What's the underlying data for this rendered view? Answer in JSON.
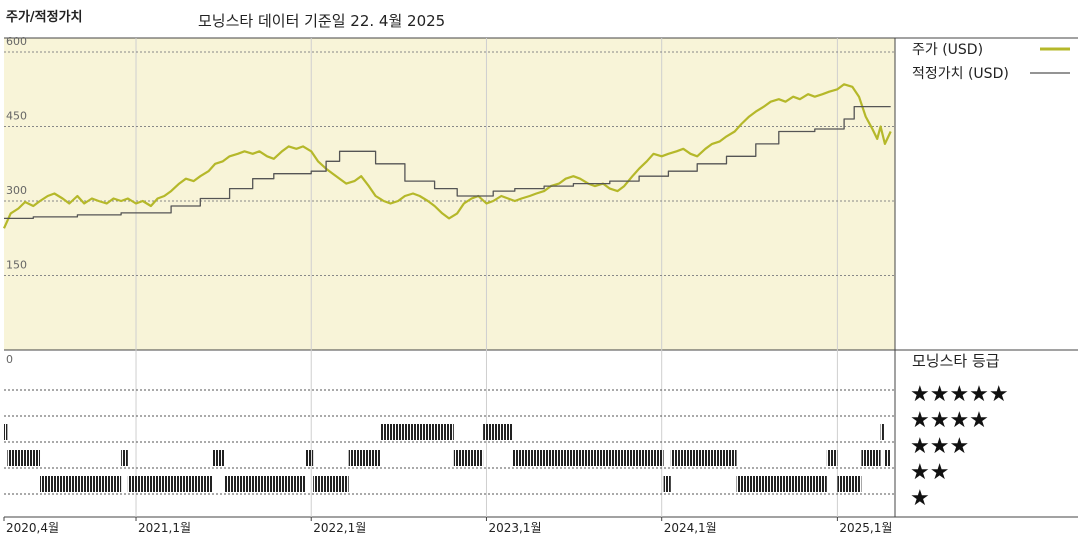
{
  "header": {
    "title": "주가/적정가치",
    "subtitle": "모닝스타 데이터 기준일 22. 4월 2025"
  },
  "chart_data": {
    "type": "line",
    "x_range": [
      "2020-04-01",
      "2025-05-01"
    ],
    "y_ticks": [
      "600",
      "450",
      "300",
      "150"
    ],
    "ylim": [
      0,
      600
    ],
    "colors": {
      "price": "#b5b82a",
      "fair_value": "#555555",
      "price_panel_bg": "#f8f4d8"
    },
    "series": [
      {
        "name": "주가 (USD)",
        "key": "price",
        "points": [
          [
            "2020-04-01",
            245
          ],
          [
            "2020-04-15",
            275
          ],
          [
            "2020-05-01",
            285
          ],
          [
            "2020-05-15",
            298
          ],
          [
            "2020-06-01",
            290
          ],
          [
            "2020-06-15",
            300
          ],
          [
            "2020-07-01",
            310
          ],
          [
            "2020-07-15",
            315
          ],
          [
            "2020-08-01",
            305
          ],
          [
            "2020-08-15",
            295
          ],
          [
            "2020-09-01",
            310
          ],
          [
            "2020-09-15",
            295
          ],
          [
            "2020-10-01",
            305
          ],
          [
            "2020-10-15",
            300
          ],
          [
            "2020-11-01",
            295
          ],
          [
            "2020-11-15",
            305
          ],
          [
            "2020-12-01",
            300
          ],
          [
            "2020-12-15",
            305
          ],
          [
            "2021-01-01",
            295
          ],
          [
            "2021-01-15",
            300
          ],
          [
            "2021-02-01",
            290
          ],
          [
            "2021-02-15",
            305
          ],
          [
            "2021-03-01",
            310
          ],
          [
            "2021-03-15",
            320
          ],
          [
            "2021-04-01",
            335
          ],
          [
            "2021-04-15",
            345
          ],
          [
            "2021-05-01",
            340
          ],
          [
            "2021-05-15",
            350
          ],
          [
            "2021-06-01",
            360
          ],
          [
            "2021-06-15",
            375
          ],
          [
            "2021-07-01",
            380
          ],
          [
            "2021-07-15",
            390
          ],
          [
            "2021-08-01",
            395
          ],
          [
            "2021-08-15",
            400
          ],
          [
            "2021-09-01",
            395
          ],
          [
            "2021-09-15",
            400
          ],
          [
            "2021-10-01",
            390
          ],
          [
            "2021-10-15",
            385
          ],
          [
            "2021-11-01",
            400
          ],
          [
            "2021-11-15",
            410
          ],
          [
            "2021-12-01",
            405
          ],
          [
            "2021-12-15",
            410
          ],
          [
            "2022-01-01",
            400
          ],
          [
            "2022-01-15",
            380
          ],
          [
            "2022-02-01",
            365
          ],
          [
            "2022-02-15",
            355
          ],
          [
            "2022-03-01",
            345
          ],
          [
            "2022-03-15",
            335
          ],
          [
            "2022-04-01",
            340
          ],
          [
            "2022-04-15",
            350
          ],
          [
            "2022-05-01",
            330
          ],
          [
            "2022-05-15",
            310
          ],
          [
            "2022-06-01",
            300
          ],
          [
            "2022-06-15",
            295
          ],
          [
            "2022-07-01",
            300
          ],
          [
            "2022-07-15",
            310
          ],
          [
            "2022-08-01",
            315
          ],
          [
            "2022-08-15",
            310
          ],
          [
            "2022-09-01",
            300
          ],
          [
            "2022-09-15",
            290
          ],
          [
            "2022-10-01",
            275
          ],
          [
            "2022-10-15",
            265
          ],
          [
            "2022-11-01",
            275
          ],
          [
            "2022-11-15",
            295
          ],
          [
            "2022-12-01",
            305
          ],
          [
            "2022-12-15",
            310
          ],
          [
            "2023-01-01",
            295
          ],
          [
            "2023-01-15",
            300
          ],
          [
            "2023-02-01",
            310
          ],
          [
            "2023-02-15",
            305
          ],
          [
            "2023-03-01",
            300
          ],
          [
            "2023-03-15",
            305
          ],
          [
            "2023-04-01",
            310
          ],
          [
            "2023-04-15",
            315
          ],
          [
            "2023-05-01",
            320
          ],
          [
            "2023-05-15",
            330
          ],
          [
            "2023-06-01",
            335
          ],
          [
            "2023-06-15",
            345
          ],
          [
            "2023-07-01",
            350
          ],
          [
            "2023-07-15",
            345
          ],
          [
            "2023-08-01",
            335
          ],
          [
            "2023-08-15",
            330
          ],
          [
            "2023-09-01",
            335
          ],
          [
            "2023-09-15",
            325
          ],
          [
            "2023-10-01",
            320
          ],
          [
            "2023-10-15",
            330
          ],
          [
            "2023-11-01",
            350
          ],
          [
            "2023-11-15",
            365
          ],
          [
            "2023-12-01",
            380
          ],
          [
            "2023-12-15",
            395
          ],
          [
            "2024-01-01",
            390
          ],
          [
            "2024-01-15",
            395
          ],
          [
            "2024-02-01",
            400
          ],
          [
            "2024-02-15",
            405
          ],
          [
            "2024-03-01",
            395
          ],
          [
            "2024-03-15",
            390
          ],
          [
            "2024-04-01",
            405
          ],
          [
            "2024-04-15",
            415
          ],
          [
            "2024-05-01",
            420
          ],
          [
            "2024-05-15",
            430
          ],
          [
            "2024-06-01",
            440
          ],
          [
            "2024-06-15",
            455
          ],
          [
            "2024-07-01",
            470
          ],
          [
            "2024-07-15",
            480
          ],
          [
            "2024-08-01",
            490
          ],
          [
            "2024-08-15",
            500
          ],
          [
            "2024-09-01",
            505
          ],
          [
            "2024-09-15",
            500
          ],
          [
            "2024-10-01",
            510
          ],
          [
            "2024-10-15",
            505
          ],
          [
            "2024-11-01",
            515
          ],
          [
            "2024-11-15",
            510
          ],
          [
            "2024-12-01",
            515
          ],
          [
            "2024-12-15",
            520
          ],
          [
            "2025-01-01",
            525
          ],
          [
            "2025-01-15",
            535
          ],
          [
            "2025-02-01",
            530
          ],
          [
            "2025-02-15",
            510
          ],
          [
            "2025-03-01",
            470
          ],
          [
            "2025-03-15",
            445
          ],
          [
            "2025-03-25",
            425
          ],
          [
            "2025-04-01",
            450
          ],
          [
            "2025-04-10",
            415
          ],
          [
            "2025-04-22",
            440
          ]
        ]
      },
      {
        "name": "적정가치 (USD)",
        "key": "fair_value",
        "points": [
          [
            "2020-04-01",
            265
          ],
          [
            "2020-06-01",
            265
          ],
          [
            "2020-06-01",
            268
          ],
          [
            "2020-09-01",
            268
          ],
          [
            "2020-09-01",
            272
          ],
          [
            "2020-12-01",
            272
          ],
          [
            "2020-12-01",
            276
          ],
          [
            "2021-03-15",
            276
          ],
          [
            "2021-03-15",
            290
          ],
          [
            "2021-05-15",
            290
          ],
          [
            "2021-05-15",
            305
          ],
          [
            "2021-07-15",
            305
          ],
          [
            "2021-07-15",
            325
          ],
          [
            "2021-09-01",
            325
          ],
          [
            "2021-09-01",
            345
          ],
          [
            "2021-10-15",
            345
          ],
          [
            "2021-10-15",
            355
          ],
          [
            "2022-01-01",
            355
          ],
          [
            "2022-01-01",
            360
          ],
          [
            "2022-02-01",
            360
          ],
          [
            "2022-02-01",
            380
          ],
          [
            "2022-03-01",
            380
          ],
          [
            "2022-03-01",
            400
          ],
          [
            "2022-05-15",
            400
          ],
          [
            "2022-05-15",
            375
          ],
          [
            "2022-07-15",
            375
          ],
          [
            "2022-07-15",
            340
          ],
          [
            "2022-09-15",
            340
          ],
          [
            "2022-09-15",
            325
          ],
          [
            "2022-11-01",
            325
          ],
          [
            "2022-11-01",
            310
          ],
          [
            "2023-01-15",
            310
          ],
          [
            "2023-01-15",
            320
          ],
          [
            "2023-03-01",
            320
          ],
          [
            "2023-03-01",
            325
          ],
          [
            "2023-05-01",
            325
          ],
          [
            "2023-05-01",
            330
          ],
          [
            "2023-07-01",
            330
          ],
          [
            "2023-07-01",
            335
          ],
          [
            "2023-09-15",
            335
          ],
          [
            "2023-09-15",
            340
          ],
          [
            "2023-11-15",
            340
          ],
          [
            "2023-11-15",
            350
          ],
          [
            "2024-01-15",
            350
          ],
          [
            "2024-01-15",
            360
          ],
          [
            "2024-03-15",
            360
          ],
          [
            "2024-03-15",
            375
          ],
          [
            "2024-05-15",
            375
          ],
          [
            "2024-05-15",
            390
          ],
          [
            "2024-07-15",
            390
          ],
          [
            "2024-07-15",
            415
          ],
          [
            "2024-09-01",
            415
          ],
          [
            "2024-09-01",
            440
          ],
          [
            "2024-11-15",
            440
          ],
          [
            "2024-11-15",
            445
          ],
          [
            "2025-01-15",
            445
          ],
          [
            "2025-01-15",
            465
          ],
          [
            "2025-02-05",
            465
          ],
          [
            "2025-02-05",
            490
          ],
          [
            "2025-04-22",
            490
          ]
        ]
      }
    ],
    "x_ticks": [
      {
        "label": "2020,4월",
        "date": "2020-04-01"
      },
      {
        "label": "2021,1월",
        "date": "2021-01-01"
      },
      {
        "label": "2022,1월",
        "date": "2022-01-01"
      },
      {
        "label": "2023,1월",
        "date": "2023-01-01"
      },
      {
        "label": "2024,1월",
        "date": "2024-01-01"
      },
      {
        "label": "2025,1월",
        "date": "2025-01-01"
      }
    ],
    "grid": true,
    "legend_position": "top-right",
    "rating_panel": {
      "title": "모닝스타 등급",
      "zero_label": "0",
      "levels": [
        {
          "stars": 5,
          "text": "★★★★★"
        },
        {
          "stars": 4,
          "text": "★★★★"
        },
        {
          "stars": 3,
          "text": "★★★"
        },
        {
          "stars": 2,
          "text": "★★"
        },
        {
          "stars": 1,
          "text": "★"
        }
      ],
      "periods": [
        {
          "rating": 4,
          "start": "2020-04-01",
          "end": "2020-04-08"
        },
        {
          "rating": 3,
          "start": "2020-04-08",
          "end": "2020-06-15"
        },
        {
          "rating": 2,
          "start": "2020-06-15",
          "end": "2020-12-01"
        },
        {
          "rating": 3,
          "start": "2020-12-01",
          "end": "2020-12-15"
        },
        {
          "rating": 2,
          "start": "2020-12-15",
          "end": "2021-06-10"
        },
        {
          "rating": 3,
          "start": "2021-06-10",
          "end": "2021-07-05"
        },
        {
          "rating": 2,
          "start": "2021-07-05",
          "end": "2021-12-20"
        },
        {
          "rating": 3,
          "start": "2021-12-20",
          "end": "2022-01-05"
        },
        {
          "rating": 2,
          "start": "2022-01-05",
          "end": "2022-03-20"
        },
        {
          "rating": 3,
          "start": "2022-03-20",
          "end": "2022-05-25"
        },
        {
          "rating": 4,
          "start": "2022-05-25",
          "end": "2022-10-25"
        },
        {
          "rating": 3,
          "start": "2022-10-25",
          "end": "2022-12-25"
        },
        {
          "rating": 4,
          "start": "2022-12-25",
          "end": "2023-02-25"
        },
        {
          "rating": 3,
          "start": "2023-02-25",
          "end": "2024-01-05"
        },
        {
          "rating": 2,
          "start": "2024-01-05",
          "end": "2024-01-20"
        },
        {
          "rating": 3,
          "start": "2024-01-20",
          "end": "2024-06-05"
        },
        {
          "rating": 2,
          "start": "2024-06-05",
          "end": "2024-12-10"
        },
        {
          "rating": 3,
          "start": "2024-12-10",
          "end": "2025-01-01"
        },
        {
          "rating": 2,
          "start": "2025-01-01",
          "end": "2025-02-20"
        },
        {
          "rating": 3,
          "start": "2025-02-20",
          "end": "2025-04-01"
        },
        {
          "rating": 4,
          "start": "2025-04-01",
          "end": "2025-04-08"
        },
        {
          "rating": 3,
          "start": "2025-04-08",
          "end": "2025-04-22"
        }
      ]
    }
  }
}
